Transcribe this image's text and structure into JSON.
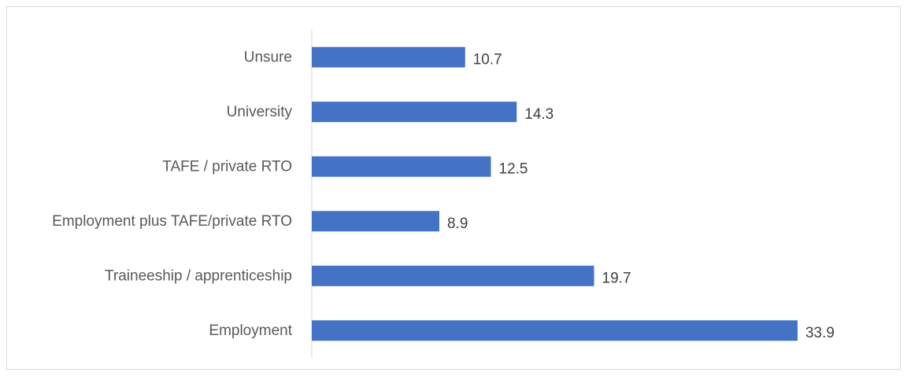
{
  "chart_data": {
    "type": "bar",
    "orientation": "horizontal",
    "categories": [
      "Unsure",
      "University",
      "TAFE / private RTO",
      "Employment plus TAFE/private RTO",
      "Traineeship / apprenticeship",
      "Employment"
    ],
    "values": [
      10.7,
      14.3,
      12.5,
      8.9,
      19.7,
      33.9
    ],
    "data_labels": [
      "10.7",
      "14.3",
      "12.5",
      "8.9",
      "19.7",
      "33.9"
    ],
    "xlim": [
      0,
      35
    ],
    "grid": false,
    "legend": "none",
    "bar_color": "#4472c4",
    "axis_color": "#d9d9d9"
  }
}
